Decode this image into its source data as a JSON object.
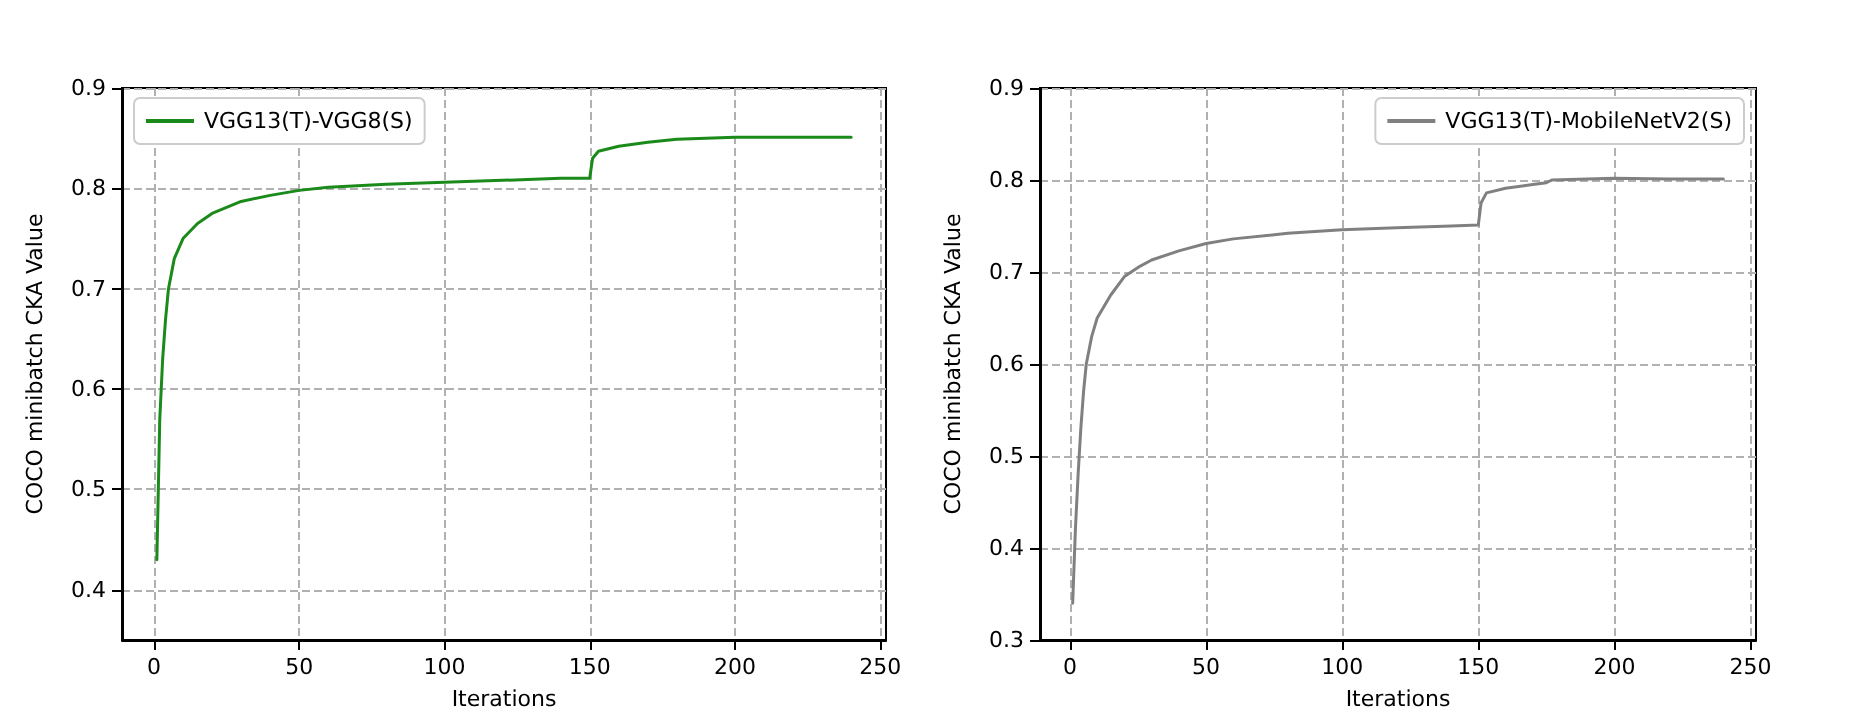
{
  "chart_data": [
    {
      "type": "line",
      "xlabel": "Iterations",
      "ylabel": "COCO minibatch CKA Value",
      "xlim": [
        -11,
        252
      ],
      "xticks": [
        0,
        50,
        100,
        150,
        200,
        250
      ],
      "ylim": [
        0.35,
        0.9
      ],
      "yticks": [
        0.4,
        0.5,
        0.6,
        0.7,
        0.8,
        0.9
      ],
      "grid": true,
      "legend": "top left",
      "marker": "none",
      "line_style": "solid",
      "series": [
        {
          "name": "VGG13(T)-VGG8(S)",
          "color": "#1a8a1a",
          "x": [
            1,
            2,
            3,
            4,
            5,
            7,
            10,
            15,
            20,
            30,
            40,
            50,
            60,
            80,
            100,
            120,
            140,
            150,
            151,
            153,
            160,
            170,
            180,
            190,
            200,
            220,
            240
          ],
          "values": [
            0.43,
            0.57,
            0.63,
            0.67,
            0.7,
            0.73,
            0.75,
            0.765,
            0.775,
            0.787,
            0.793,
            0.798,
            0.801,
            0.804,
            0.806,
            0.808,
            0.81,
            0.81,
            0.83,
            0.837,
            0.842,
            0.846,
            0.849,
            0.85,
            0.851,
            0.851,
            0.851
          ]
        }
      ]
    },
    {
      "type": "line",
      "xlabel": "Iterations",
      "ylabel": "COCO minibatch CKA Value",
      "xlim": [
        -11,
        252
      ],
      "xticks": [
        0,
        50,
        100,
        150,
        200,
        250
      ],
      "ylim": [
        0.3,
        0.9
      ],
      "yticks": [
        0.3,
        0.4,
        0.5,
        0.6,
        0.7,
        0.8,
        0.9
      ],
      "grid": true,
      "legend": "top right",
      "marker": "none",
      "line_style": "solid",
      "series": [
        {
          "name": "VGG13(T)-MobileNetV2(S)",
          "color": "#808080",
          "x": [
            1,
            2,
            3,
            4,
            5,
            6,
            8,
            10,
            15,
            20,
            25,
            30,
            40,
            50,
            60,
            80,
            100,
            120,
            140,
            150,
            151,
            153,
            160,
            170,
            175,
            177,
            190,
            200,
            220,
            240
          ],
          "values": [
            0.34,
            0.42,
            0.48,
            0.53,
            0.57,
            0.6,
            0.63,
            0.65,
            0.675,
            0.695,
            0.705,
            0.713,
            0.723,
            0.731,
            0.736,
            0.742,
            0.746,
            0.748,
            0.75,
            0.751,
            0.775,
            0.786,
            0.791,
            0.795,
            0.797,
            0.8,
            0.801,
            0.802,
            0.801,
            0.801
          ]
        }
      ]
    }
  ]
}
